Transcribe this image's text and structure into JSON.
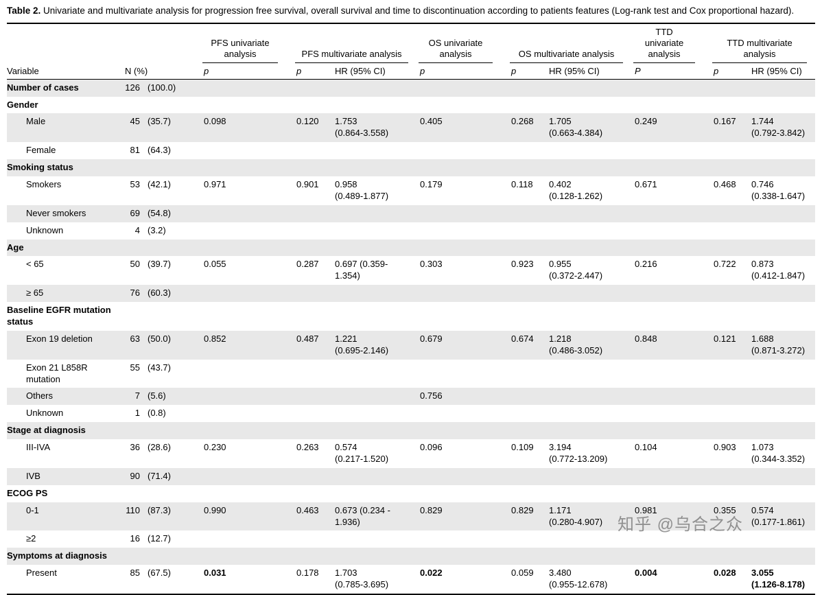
{
  "caption": {
    "label": "Table 2.",
    "text": "Univariate and multivariate analysis for progression free survival, overall survival and time to discontinuation according to patients features (Log-rank test and Cox proportional hazard)."
  },
  "header": {
    "groups": [
      "PFS univariate\nanalysis",
      "PFS multivariate analysis",
      "OS univariate\nanalysis",
      "OS multivariate analysis",
      "TTD\nunivariate\nanalysis",
      "TTD multivariate\nanalysis"
    ],
    "columns": [
      "Variable",
      "N (%)",
      "p",
      "p",
      "HR (95% CI)",
      "p",
      "p",
      "HR (95% CI)",
      "P",
      "p",
      "HR (95% CI)"
    ]
  },
  "rows": [
    {
      "label": "Number of cases",
      "n": "126",
      "pct": "(100.0)",
      "bold": true,
      "indent": false,
      "shaded": true
    },
    {
      "label": "Gender",
      "n": "",
      "pct": "",
      "bold": true,
      "indent": false,
      "shaded": false
    },
    {
      "label": "Male",
      "n": "45",
      "pct": "(35.7)",
      "indent": true,
      "shaded": true,
      "cells": [
        "0.098",
        "0.120",
        "1.753\n(0.864-3.558)",
        "0.405",
        "0.268",
        "1.705\n(0.663-4.384)",
        "0.249",
        "0.167",
        "1.744\n(0.792-3.842)"
      ]
    },
    {
      "label": "Female",
      "n": "81",
      "pct": "(64.3)",
      "indent": true,
      "shaded": false
    },
    {
      "label": "Smoking status",
      "n": "",
      "pct": "",
      "bold": true,
      "indent": false,
      "shaded": true
    },
    {
      "label": "Smokers",
      "n": "53",
      "pct": "(42.1)",
      "indent": true,
      "shaded": false,
      "cells": [
        "0.971",
        "0.901",
        "0.958\n(0.489-1.877)",
        "0.179",
        "0.118",
        "0.402\n(0.128-1.262)",
        "0.671",
        "0.468",
        "0.746\n(0.338-1.647)"
      ]
    },
    {
      "label": "Never smokers",
      "n": "69",
      "pct": "(54.8)",
      "indent": true,
      "shaded": true
    },
    {
      "label": "Unknown",
      "n": "4",
      "pct": "(3.2)",
      "indent": true,
      "shaded": false
    },
    {
      "label": "Age",
      "n": "",
      "pct": "",
      "bold": true,
      "indent": false,
      "shaded": true
    },
    {
      "label": "< 65",
      "n": "50",
      "pct": "(39.7)",
      "indent": true,
      "shaded": false,
      "cells": [
        "0.055",
        "0.287",
        "0.697 (0.359-\n1.354)",
        "0.303",
        "0.923",
        "0.955\n(0.372-2.447)",
        "0.216",
        "0.722",
        "0.873\n(0.412-1.847)"
      ]
    },
    {
      "label": "≥ 65",
      "n": "76",
      "pct": "(60.3)",
      "indent": true,
      "shaded": true
    },
    {
      "label": "Baseline EGFR mutation status",
      "n": "",
      "pct": "",
      "bold": true,
      "indent": false,
      "shaded": false
    },
    {
      "label": "Exon 19 deletion",
      "n": "63",
      "pct": "(50.0)",
      "indent": true,
      "shaded": true,
      "cells": [
        "0.852",
        "0.487",
        "1.221\n(0.695-2.146)",
        "0.679",
        "0.674",
        "1.218\n(0.486-3.052)",
        "0.848",
        "0.121",
        "1.688\n(0.871-3.272)"
      ]
    },
    {
      "label": "Exon 21 L858R mutation",
      "n": "55",
      "pct": "(43.7)",
      "indent": true,
      "shaded": false
    },
    {
      "label": "Others",
      "n": "7",
      "pct": "(5.6)",
      "indent": true,
      "shaded": true,
      "cells": [
        "",
        "",
        "",
        "0.756",
        "",
        "",
        "",
        "",
        ""
      ]
    },
    {
      "label": "Unknown",
      "n": "1",
      "pct": "(0.8)",
      "indent": true,
      "shaded": false
    },
    {
      "label": "Stage at diagnosis",
      "n": "",
      "pct": "",
      "bold": true,
      "indent": false,
      "shaded": true
    },
    {
      "label": "III-IVA",
      "n": "36",
      "pct": "(28.6)",
      "indent": true,
      "shaded": false,
      "cells": [
        "0.230",
        "0.263",
        "0.574\n(0.217-1.520)",
        "0.096",
        "0.109",
        "3.194\n(0.772-13.209)",
        "0.104",
        "0.903",
        "1.073\n(0.344-3.352)"
      ]
    },
    {
      "label": "IVB",
      "n": "90",
      "pct": "(71.4)",
      "indent": true,
      "shaded": true
    },
    {
      "label": "ECOG PS",
      "n": "",
      "pct": "",
      "bold": true,
      "indent": false,
      "shaded": false
    },
    {
      "label": "0-1",
      "n": "110",
      "pct": "(87.3)",
      "indent": true,
      "shaded": true,
      "cells": [
        "0.990",
        "0.463",
        "0.673 (0.234 -\n1.936)",
        "0.829",
        "0.829",
        "1.171\n(0.280-4.907)",
        "0.981",
        "0.355",
        "0.574\n(0.177-1.861)"
      ]
    },
    {
      "label": "≥2",
      "n": "16",
      "pct": "(12.7)",
      "indent": true,
      "shaded": false
    },
    {
      "label": "Symptoms at diagnosis",
      "n": "",
      "pct": "",
      "bold": true,
      "indent": false,
      "shaded": true
    },
    {
      "label": "Present",
      "n": "85",
      "pct": "(67.5)",
      "indent": true,
      "shaded": false,
      "cells": [
        "0.031",
        "0.178",
        "1.703\n(0.785-3.695)",
        "0.022",
        "0.059",
        "3.480\n(0.955-12.678)",
        "0.004",
        "0.028",
        "3.055\n(1.126-8.178)"
      ],
      "bold_cells": [
        0,
        3,
        6,
        7,
        8
      ]
    }
  ],
  "watermark": "知乎 @乌合之众",
  "colors": {
    "row_shade": "#e8e8e8",
    "rule": "#000000",
    "watermark_gray": "#8c8c8c"
  }
}
